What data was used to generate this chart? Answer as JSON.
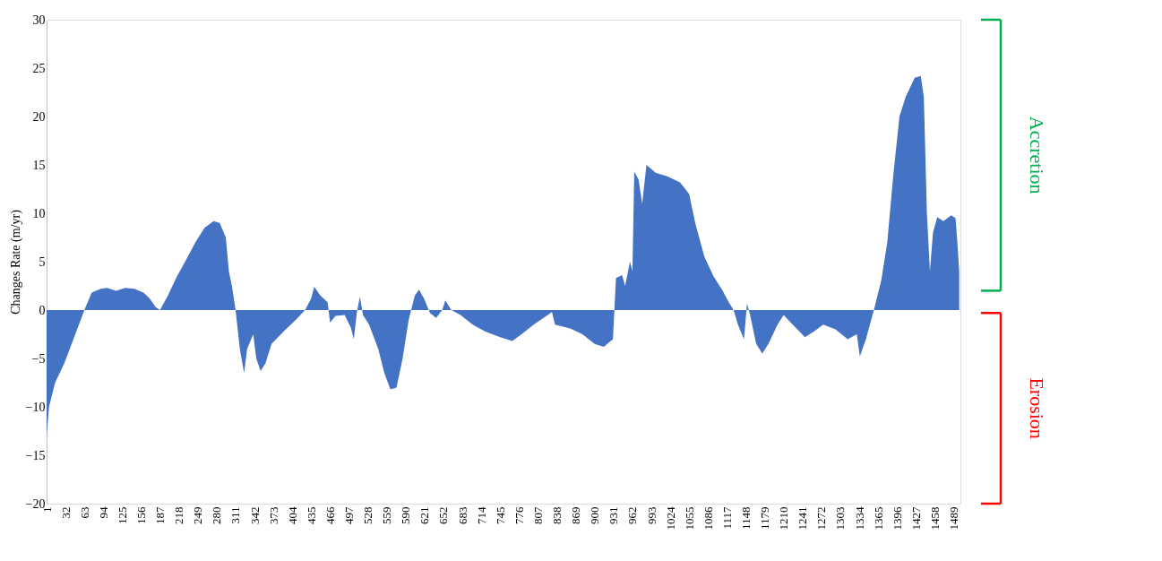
{
  "chart_data": {
    "type": "area",
    "ylabel": "Changes Rate (m/yr)",
    "color": "#4472c4",
    "x": [
      1,
      5,
      15,
      30,
      45,
      60,
      63,
      75,
      90,
      100,
      115,
      130,
      145,
      160,
      170,
      180,
      187,
      200,
      215,
      230,
      245,
      260,
      275,
      285,
      295,
      300,
      305,
      311,
      318,
      325,
      330,
      340,
      345,
      352,
      360,
      370,
      390,
      410,
      425,
      435,
      440,
      450,
      462,
      466,
      475,
      490,
      500,
      505,
      510,
      515,
      520,
      530,
      545,
      555,
      565,
      575,
      585,
      595,
      605,
      612,
      620,
      630,
      640,
      650,
      655,
      665,
      680,
      700,
      720,
      745,
      765,
      780,
      800,
      830,
      835,
      860,
      880,
      900,
      915,
      930,
      935,
      945,
      950,
      958,
      962,
      965,
      972,
      978,
      985,
      1000,
      1020,
      1040,
      1055,
      1065,
      1080,
      1095,
      1110,
      1120,
      1128,
      1135,
      1145,
      1150,
      1155,
      1165,
      1175,
      1185,
      1200,
      1210,
      1225,
      1245,
      1260,
      1275,
      1295,
      1315,
      1330,
      1335,
      1345,
      1358,
      1370,
      1380,
      1390,
      1400,
      1410,
      1425,
      1435,
      1440,
      1445,
      1450,
      1455,
      1462,
      1472,
      1485,
      1492,
      1495,
      1498
    ],
    "values": [
      -13,
      -10,
      -7.5,
      -5.5,
      -3,
      -0.5,
      0,
      1.8,
      2.2,
      2.3,
      2.0,
      2.3,
      2.2,
      1.8,
      1.2,
      0.3,
      0,
      1.5,
      3.5,
      5.2,
      7,
      8.5,
      9.2,
      9.0,
      7.5,
      4,
      2.5,
      0,
      -4,
      -6.5,
      -4,
      -2.5,
      -5,
      -6.3,
      -5.5,
      -3.5,
      -2.2,
      -1,
      0,
      1.2,
      2.4,
      1.5,
      0.8,
      -1.3,
      -0.6,
      -0.5,
      -1.8,
      -3,
      -0.2,
      1.4,
      -0.5,
      -1.5,
      -4,
      -6.5,
      -8.2,
      -8,
      -5,
      -1,
      1.5,
      2.1,
      1.2,
      -0.3,
      -0.8,
      0,
      1.0,
      0,
      -0.5,
      -1.5,
      -2.2,
      -2.8,
      -3.2,
      -2.5,
      -1.5,
      -0.2,
      -1.5,
      -1.9,
      -2.5,
      -3.5,
      -3.8,
      -3,
      3.3,
      3.6,
      2.5,
      5,
      4,
      14.3,
      13.5,
      11,
      15,
      14.2,
      13.8,
      13.2,
      12,
      9,
      5.5,
      3.5,
      2,
      0.8,
      0,
      -1.5,
      -3,
      0.7,
      -0.5,
      -3.5,
      -4.5,
      -3.5,
      -1.5,
      -0.5,
      -1.5,
      -2.8,
      -2.2,
      -1.5,
      -2,
      -3,
      -2.5,
      -4.8,
      -3,
      0,
      3,
      7,
      14,
      20,
      22,
      24,
      24.2,
      22,
      10,
      4,
      8,
      9.6,
      9.2,
      9.8,
      9.5,
      7,
      4
    ],
    "xlim": [
      1,
      1500
    ],
    "xticks": [
      1,
      32,
      63,
      94,
      125,
      156,
      187,
      218,
      249,
      280,
      311,
      342,
      373,
      404,
      435,
      466,
      497,
      528,
      559,
      590,
      621,
      652,
      683,
      714,
      745,
      776,
      807,
      838,
      869,
      900,
      931,
      962,
      993,
      1024,
      1055,
      1086,
      1117,
      1148,
      1179,
      1210,
      1241,
      1272,
      1303,
      1334,
      1365,
      1396,
      1427,
      1458,
      1489
    ],
    "ylim": [
      -20,
      30
    ],
    "yticks": [
      -20,
      -15,
      -10,
      -5,
      0,
      5,
      10,
      15,
      20,
      25,
      30
    ],
    "annotations": [
      "Accretion",
      "Erosion"
    ]
  }
}
